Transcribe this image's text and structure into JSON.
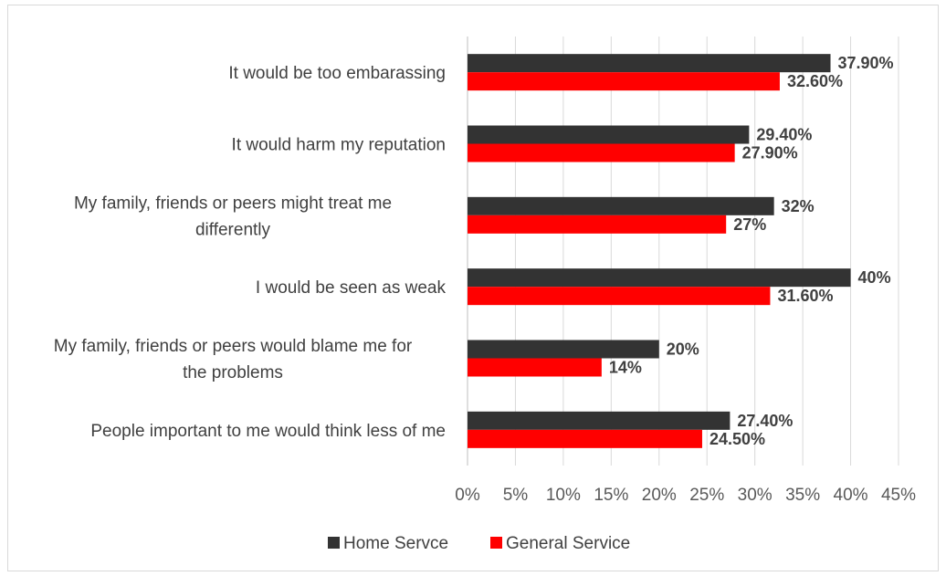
{
  "chart_data": {
    "type": "bar",
    "orientation": "horizontal",
    "categories": [
      [
        "It would be too embarassing"
      ],
      [
        "It would harm my reputation"
      ],
      [
        "My family, friends or peers might treat me",
        "differently"
      ],
      [
        "I would be seen as weak"
      ],
      [
        "My family, friends or peers would blame me for",
        "the problems"
      ],
      [
        "People important to me would think less of me"
      ]
    ],
    "series": [
      {
        "name": "Home Servce",
        "color": "#333333",
        "values": [
          37.9,
          29.4,
          32,
          40,
          20,
          27.4
        ],
        "labels": [
          "37.90%",
          "29.40%",
          "32%",
          "40%",
          "20%",
          "27.40%"
        ]
      },
      {
        "name": "General Service",
        "color": "#ff0000",
        "values": [
          32.6,
          27.9,
          27,
          31.6,
          14,
          24.5
        ],
        "labels": [
          "32.60%",
          "27.90%",
          "27%",
          "31.60%",
          "14%",
          "24.50%"
        ]
      }
    ],
    "xlim": [
      0,
      45
    ],
    "xticks": [
      "0%",
      "5%",
      "10%",
      "15%",
      "20%",
      "25%",
      "30%",
      "35%",
      "40%",
      "45%"
    ],
    "grid": true,
    "legend_position": "bottom"
  }
}
